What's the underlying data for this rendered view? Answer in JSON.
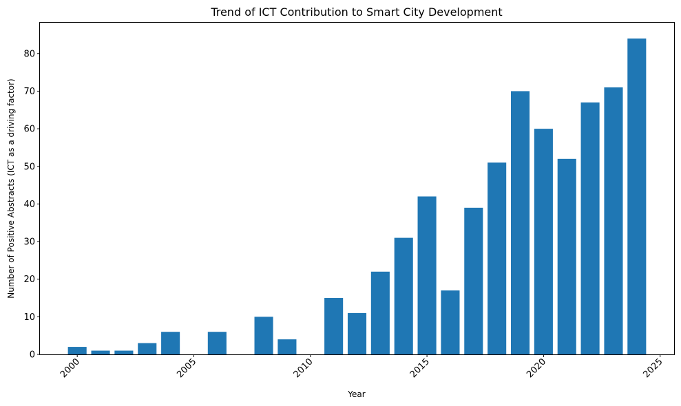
{
  "chart_data": {
    "type": "bar",
    "title": "Trend of ICT Contribution to Smart City Development",
    "xlabel": "Year",
    "ylabel": "Number of Positive Abstracts (ICT as a driving factor)",
    "x": [
      2000,
      2001,
      2002,
      2003,
      2004,
      2005,
      2006,
      2007,
      2008,
      2009,
      2010,
      2011,
      2012,
      2013,
      2014,
      2015,
      2016,
      2017,
      2018,
      2019,
      2020,
      2021,
      2022,
      2023,
      2024
    ],
    "values": [
      2,
      1,
      1,
      3,
      6,
      0,
      6,
      0,
      10,
      4,
      0,
      15,
      11,
      22,
      31,
      42,
      17,
      39,
      51,
      70,
      60,
      52,
      67,
      71,
      84
    ],
    "xlim": [
      1998.4,
      2025.6
    ],
    "ylim": [
      0,
      88.2
    ],
    "xticks": [
      "2000",
      "2005",
      "2010",
      "2015",
      "2020",
      "2025"
    ],
    "yticks": [
      "0",
      "10",
      "20",
      "30",
      "40",
      "50",
      "60",
      "70",
      "80"
    ],
    "bar_color": "#1f77b4",
    "grid": false
  }
}
